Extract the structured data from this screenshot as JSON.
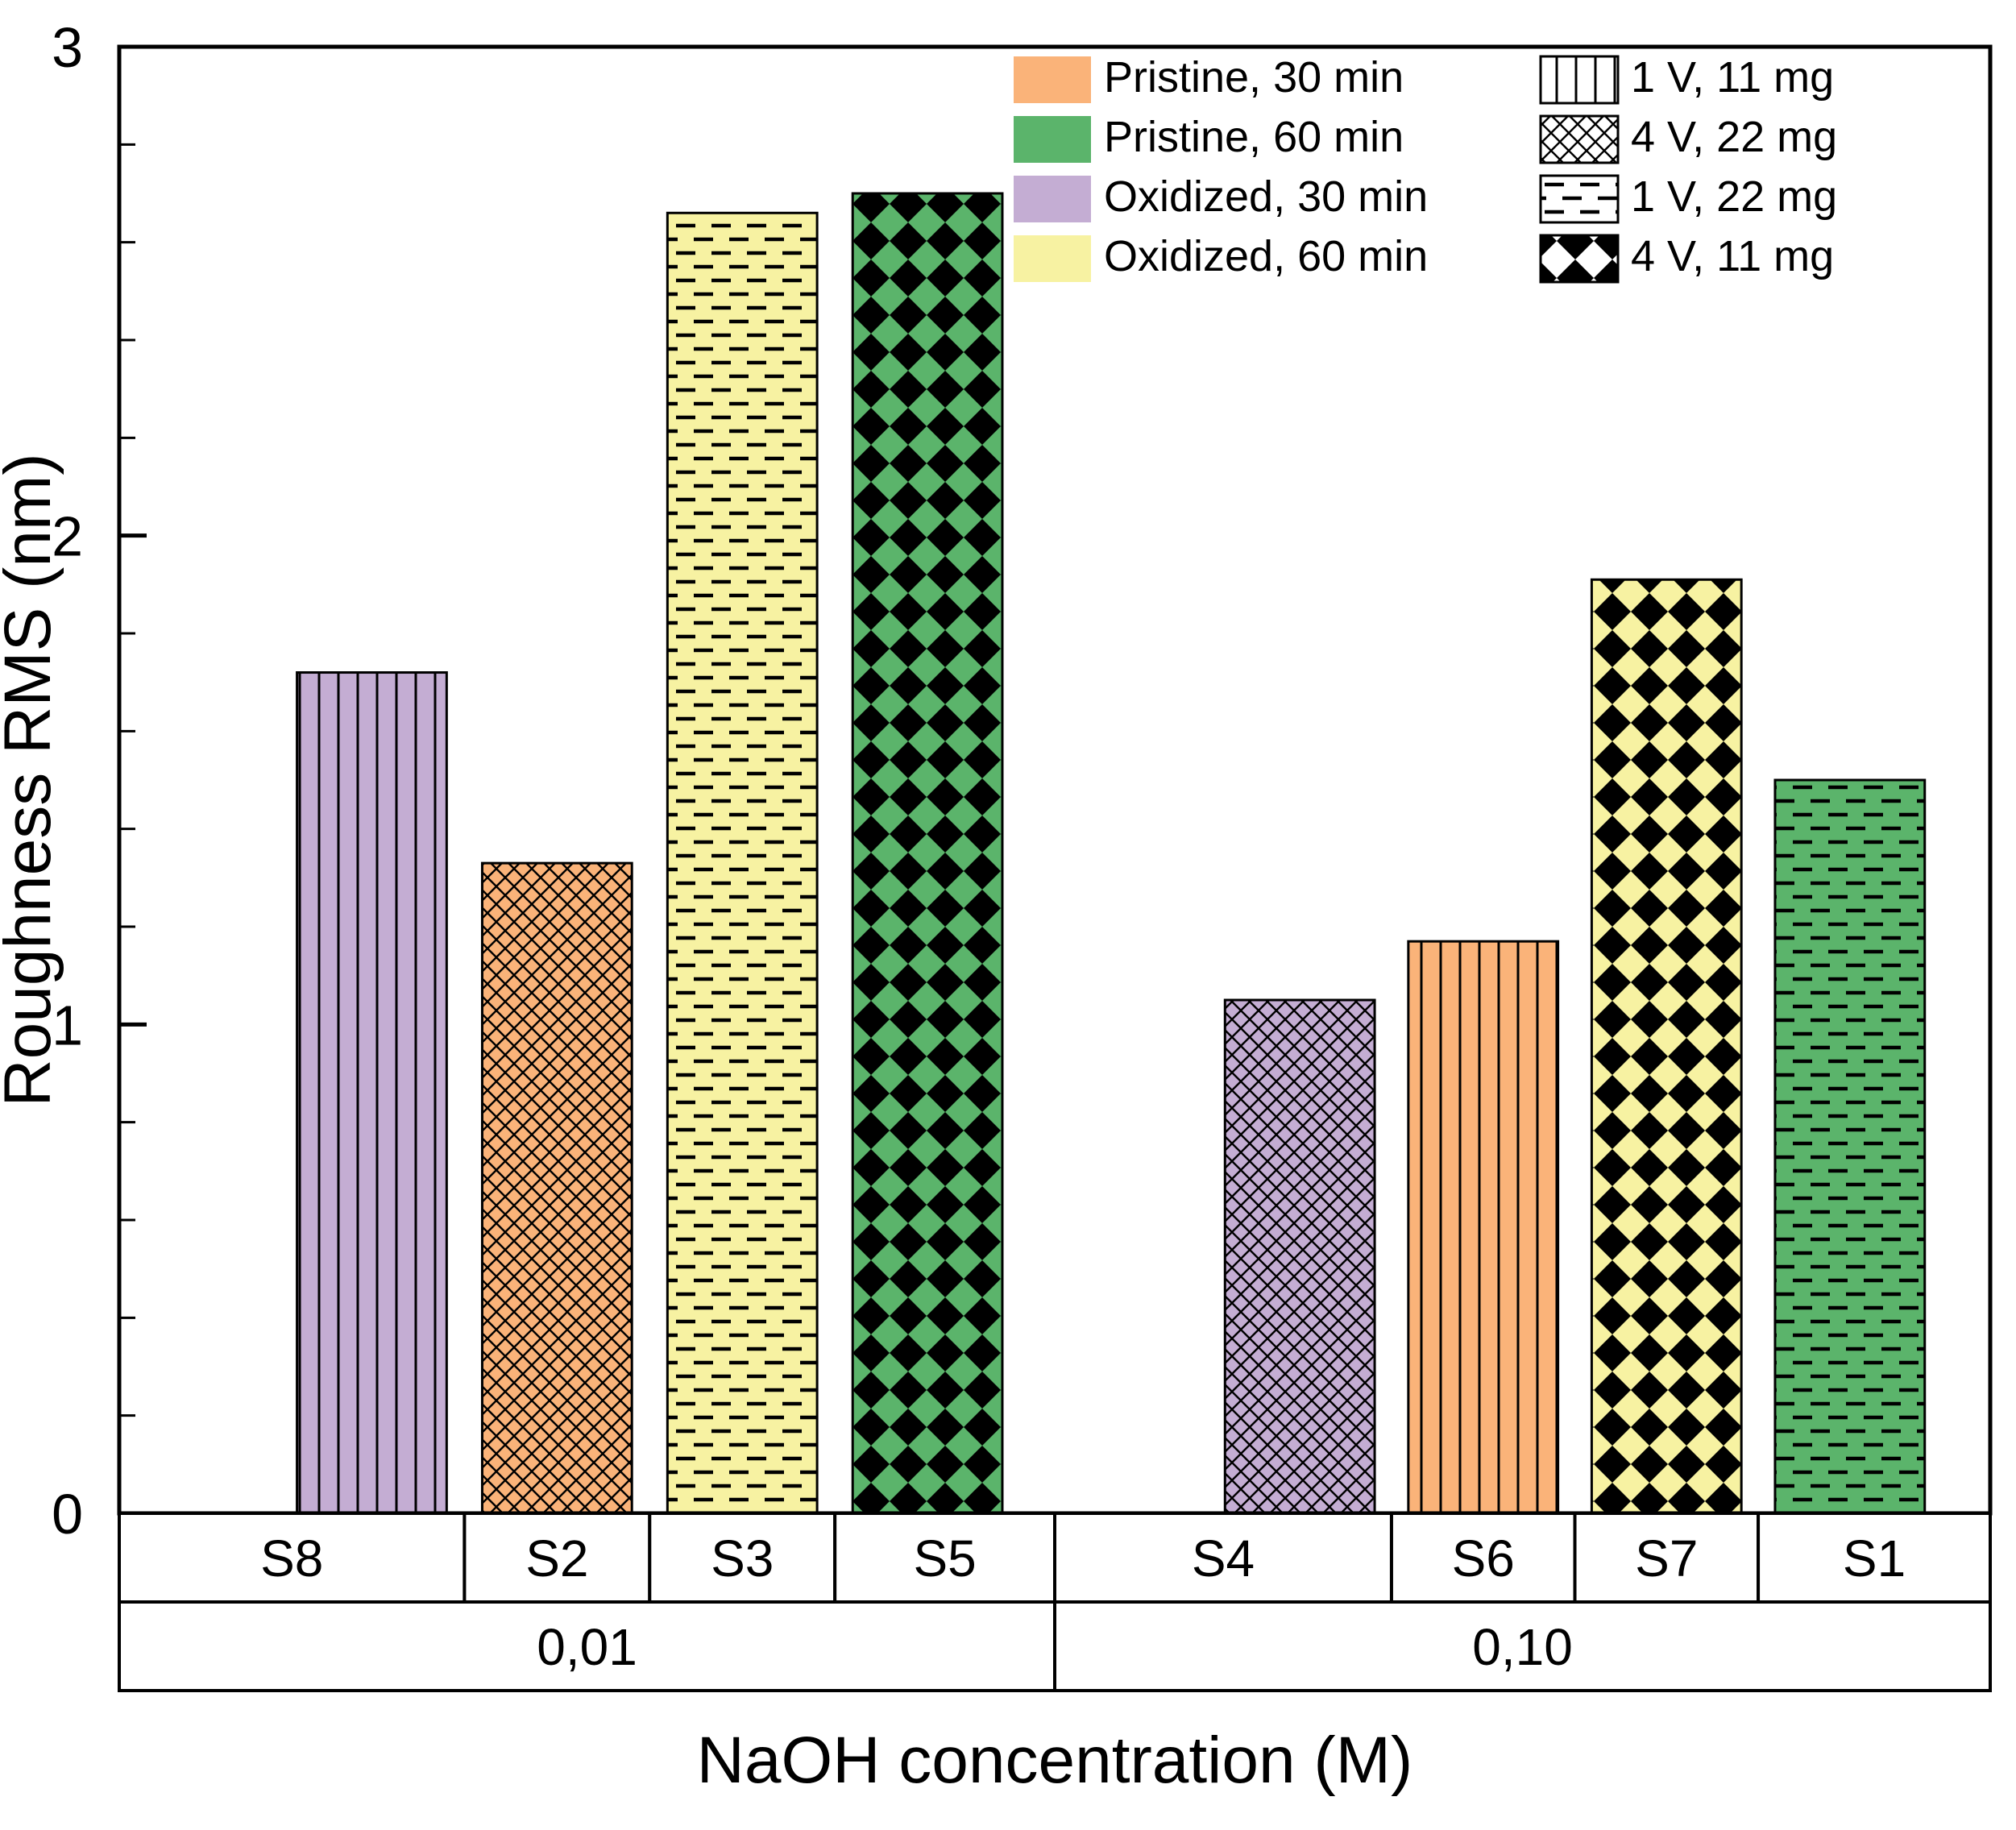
{
  "chart_data": {
    "type": "bar",
    "title": "",
    "xlabel": "NaOH concentration (M)",
    "ylabel": "Roughness RMS (nm)",
    "ylim": [
      0,
      3
    ],
    "yticks": [
      0,
      1,
      2,
      3
    ],
    "legend_position": "top-right",
    "grid": false,
    "groups": [
      {
        "label": "0,01",
        "bars": [
          {
            "sample": "S8",
            "value": 1.72,
            "color_key": "oxidized_30",
            "pattern_key": "v1_11mg"
          },
          {
            "sample": "S2",
            "value": 1.33,
            "color_key": "pristine_30",
            "pattern_key": "v4_22mg"
          },
          {
            "sample": "S3",
            "value": 2.66,
            "color_key": "oxidized_60",
            "pattern_key": "v1_22mg"
          },
          {
            "sample": "S5",
            "value": 2.7,
            "color_key": "pristine_60",
            "pattern_key": "v4_11mg"
          }
        ]
      },
      {
        "label": "0,10",
        "bars": [
          {
            "sample": "S4",
            "value": 1.05,
            "color_key": "oxidized_30",
            "pattern_key": "v4_22mg"
          },
          {
            "sample": "S6",
            "value": 1.17,
            "color_key": "pristine_30",
            "pattern_key": "v1_11mg"
          },
          {
            "sample": "S7",
            "value": 1.91,
            "color_key": "oxidized_60",
            "pattern_key": "v4_11mg"
          },
          {
            "sample": "S1",
            "value": 1.5,
            "color_key": "pristine_60",
            "pattern_key": "v1_22mg"
          }
        ]
      }
    ],
    "legend_colors": [
      {
        "key": "pristine_30",
        "label": "Pristine, 30 min",
        "color": "#FAB379"
      },
      {
        "key": "pristine_60",
        "label": "Pristine, 60 min",
        "color": "#5BB46B"
      },
      {
        "key": "oxidized_30",
        "label": "Oxidized, 30 min",
        "color": "#C4ADD3"
      },
      {
        "key": "oxidized_60",
        "label": "Oxidized, 60 min",
        "color": "#F7F2A2"
      }
    ],
    "legend_patterns": [
      {
        "key": "v1_11mg",
        "label": "1 V, 11 mg",
        "pattern": "vertical-lines"
      },
      {
        "key": "v4_22mg",
        "label": "4 V, 22 mg",
        "pattern": "diagonal-weave"
      },
      {
        "key": "v1_22mg",
        "label": "1 V, 22 mg",
        "pattern": "dashed-rows"
      },
      {
        "key": "v4_11mg",
        "label": "4 V, 11 mg",
        "pattern": "diamond-check"
      }
    ]
  },
  "colors": {
    "axis": "#000000",
    "background": "#FFFFFF",
    "bar_outline": "#000000"
  }
}
